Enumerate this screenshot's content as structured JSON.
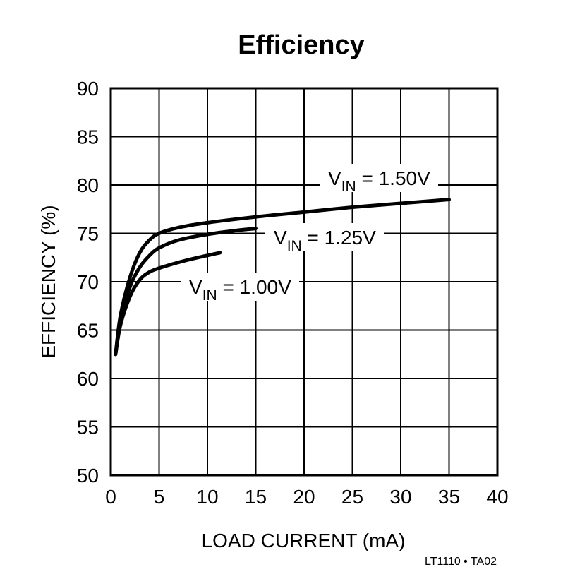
{
  "chart_data": {
    "type": "line",
    "title": "Efficiency",
    "xlabel": "LOAD CURRENT (mA)",
    "ylabel": "EFFICIENCY (%)",
    "xlim": [
      0,
      40
    ],
    "ylim": [
      50,
      90
    ],
    "xticks": [
      0,
      5,
      10,
      15,
      20,
      25,
      30,
      35,
      40
    ],
    "yticks": [
      50,
      55,
      60,
      65,
      70,
      75,
      80,
      85,
      90
    ],
    "grid": true,
    "series": [
      {
        "name": "VIN = 1.50V",
        "label_main": "V",
        "label_sub": "IN",
        "label_rest": " = 1.50V",
        "x": [
          0.5,
          1,
          2,
          3,
          4,
          5,
          7,
          10,
          15,
          20,
          25,
          30,
          35
        ],
        "y": [
          62.5,
          66.5,
          70.5,
          73,
          74.3,
          75,
          75.6,
          76.1,
          76.7,
          77.2,
          77.7,
          78.1,
          78.5
        ]
      },
      {
        "name": "VIN = 1.25V",
        "label_main": "V",
        "label_sub": "IN",
        "label_rest": " = 1.25V",
        "x": [
          0.5,
          1,
          2,
          3,
          4,
          5,
          7,
          10,
          13,
          15
        ],
        "y": [
          62.5,
          66,
          69.5,
          71.5,
          72.7,
          73.5,
          74.3,
          74.9,
          75.3,
          75.5
        ]
      },
      {
        "name": "VIN = 1.00V",
        "label_main": "V",
        "label_sub": "IN",
        "label_rest": " = 1.00V",
        "x": [
          0.5,
          1,
          2,
          3,
          4,
          5,
          7,
          9,
          11.3
        ],
        "y": [
          62.5,
          65.5,
          68.5,
          70.2,
          71,
          71.4,
          72,
          72.5,
          73
        ]
      }
    ]
  },
  "footer": "LT1110 • TA02"
}
